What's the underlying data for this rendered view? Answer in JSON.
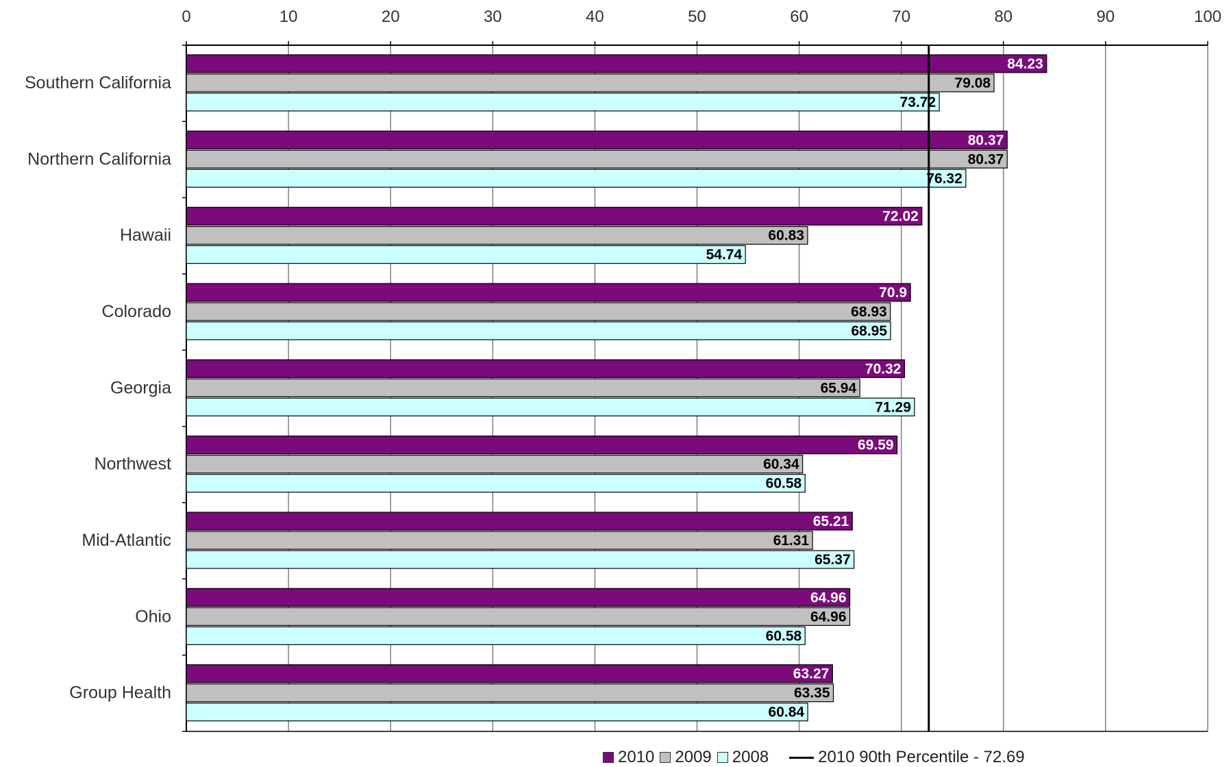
{
  "chart_data": {
    "type": "bar",
    "orientation": "horizontal",
    "categories": [
      "Southern California",
      "Northern California",
      "Hawaii",
      "Colorado",
      "Georgia",
      "Northwest",
      "Mid-Atlantic",
      "Ohio",
      "Group Health"
    ],
    "series": [
      {
        "name": "2010",
        "color": "#7b0a7b",
        "values": [
          84.23,
          80.37,
          72.02,
          70.9,
          70.32,
          69.59,
          65.21,
          64.96,
          63.27
        ]
      },
      {
        "name": "2009",
        "color": "#c0c0c0",
        "values": [
          79.08,
          80.37,
          60.83,
          68.93,
          65.94,
          60.34,
          61.31,
          64.96,
          63.35
        ]
      },
      {
        "name": "2008",
        "color": "#ccffff",
        "values": [
          73.72,
          76.32,
          54.74,
          68.95,
          71.29,
          60.58,
          65.37,
          60.58,
          60.84
        ]
      }
    ],
    "data_labels": [
      [
        "84.23",
        "79.08",
        "73.72"
      ],
      [
        "80.37",
        "80.37",
        "76.32"
      ],
      [
        "72.02",
        "60.83",
        "54.74"
      ],
      [
        "70.9",
        "68.93",
        "68.95"
      ],
      [
        "70.32",
        "65.94",
        "71.29"
      ],
      [
        "69.59",
        "60.34",
        "60.58"
      ],
      [
        "65.21",
        "61.31",
        "65.37"
      ],
      [
        "64.96",
        "64.96",
        "60.58"
      ],
      [
        "63.27",
        "63.35",
        "60.84"
      ]
    ],
    "xlim": [
      0,
      100
    ],
    "x_ticks": [
      "0",
      "10",
      "20",
      "30",
      "40",
      "50",
      "60",
      "70",
      "80",
      "90",
      "100"
    ],
    "x_axis_position": "top",
    "grid": true,
    "reference_line": {
      "name": "2010 90th Percentile - 72.69",
      "value": 72.69
    },
    "legend": {
      "placement": "bottom",
      "items": [
        "2010",
        "2009",
        "2008",
        "2010 90th Percentile - 72.69"
      ]
    }
  }
}
